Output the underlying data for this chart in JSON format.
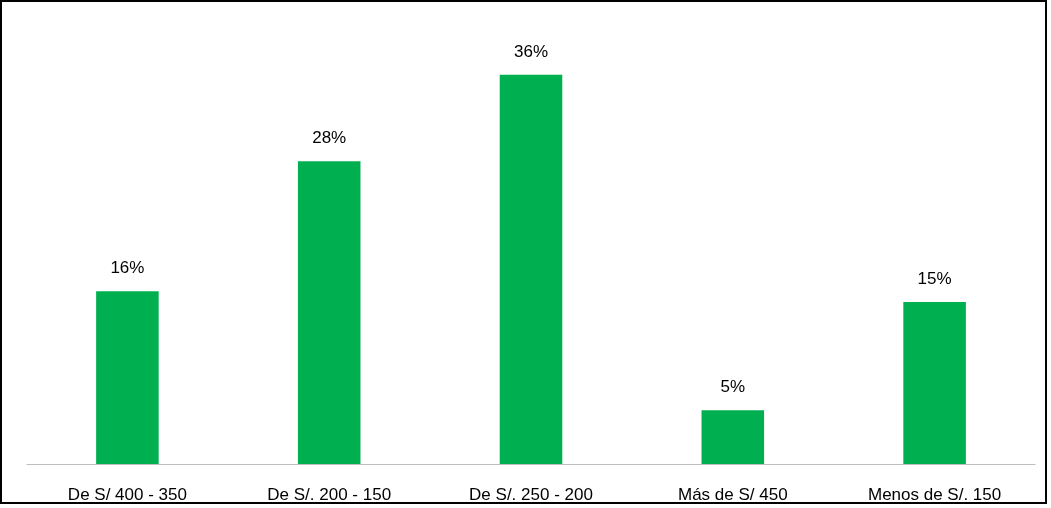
{
  "chart_data": {
    "type": "bar",
    "categories": [
      "De S/ 400 - 350",
      "De S/. 200 - 150",
      "De S/. 250 - 200",
      "Más de S/ 450",
      "Menos de S/. 150"
    ],
    "values": [
      16,
      28,
      36,
      5,
      15
    ],
    "value_labels": [
      "16%",
      "28%",
      "36%",
      "5%",
      "15%"
    ],
    "color": "#00b050",
    "grid": false,
    "tick_labels": "x"
  }
}
